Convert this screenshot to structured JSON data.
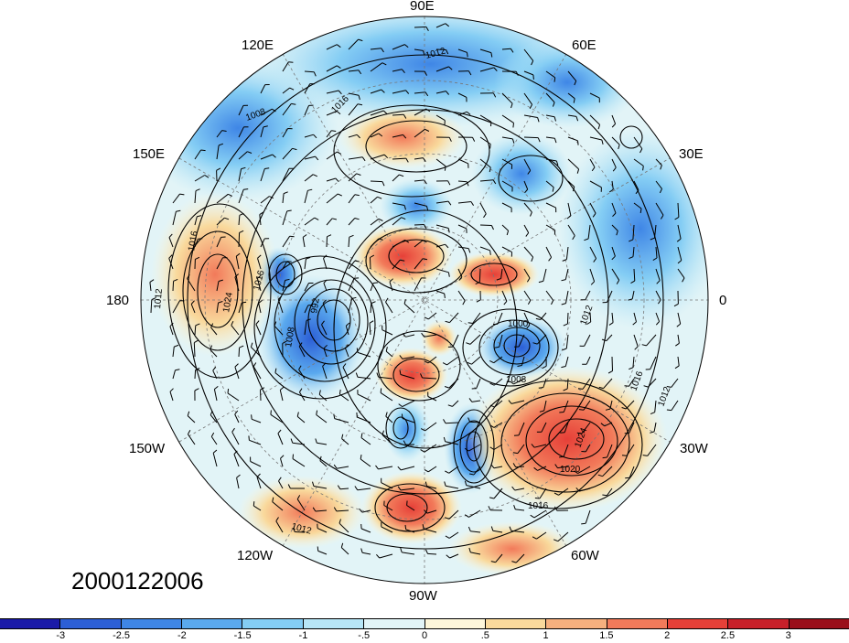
{
  "date_label": "2000122006",
  "longitude_labels": {
    "top": "90E",
    "top_left": "120E",
    "top_right": "60E",
    "upper_left": "150E",
    "upper_right": "30E",
    "left": "180",
    "right": "0",
    "lower_left": "150W",
    "lower_right": "30W",
    "bottom_left": "120W",
    "bottom_right": "60W",
    "bottom": "90W"
  },
  "colorbar": {
    "colors": [
      "#1a1aa8",
      "#2c5fd6",
      "#3f86e6",
      "#5aa9ee",
      "#84cdf4",
      "#b7e6f7",
      "#e2f4f7",
      "#fdf6da",
      "#f9d99c",
      "#f6b07e",
      "#f27a5a",
      "#e64038",
      "#c8202a",
      "#9a0f1a"
    ],
    "ticks": [
      "-3",
      "-2.5",
      "-2",
      "-1.5",
      "-1",
      "-.5",
      "0",
      ".5",
      "1",
      "1.5",
      "2",
      "2.5",
      "3"
    ]
  },
  "contour_labels": [
    "1012",
    "1008",
    "1016",
    "1016",
    "1024",
    "1012",
    "1016",
    "992",
    "1008",
    "1008",
    "1000",
    "1012",
    "1016",
    "1012",
    "1024",
    "1020",
    "1016",
    "1012"
  ]
}
